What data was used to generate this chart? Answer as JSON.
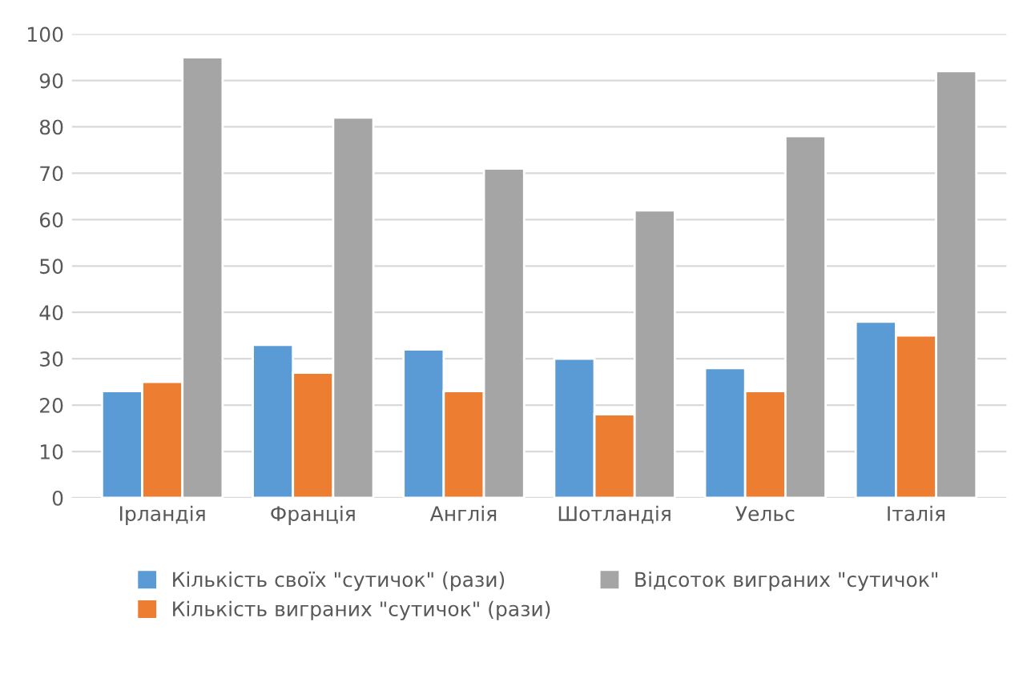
{
  "chart_data": {
    "type": "bar",
    "categories": [
      "Ірландія",
      "Франція",
      "Англія",
      "Шотландія",
      "Уельс",
      "Італія"
    ],
    "series": [
      {
        "name": "Кількість своїх \"сутичок\" (рази)",
        "color": "#5b9bd5",
        "values": [
          23,
          33,
          32,
          30,
          28,
          38
        ]
      },
      {
        "name": "Кількість виграних \"сутичок\" (рази)",
        "color": "#ed7d31",
        "values": [
          25,
          27,
          23,
          18,
          23,
          35
        ]
      },
      {
        "name": "Відсоток виграних \"сутичок\"",
        "color": "#a5a5a5",
        "values": [
          95,
          82,
          71,
          62,
          78,
          92
        ]
      }
    ],
    "ylim": [
      0,
      100
    ],
    "yticks": [
      0,
      10,
      20,
      30,
      40,
      50,
      60,
      70,
      80,
      90,
      100
    ],
    "grid": "y",
    "legend": "bottom"
  }
}
